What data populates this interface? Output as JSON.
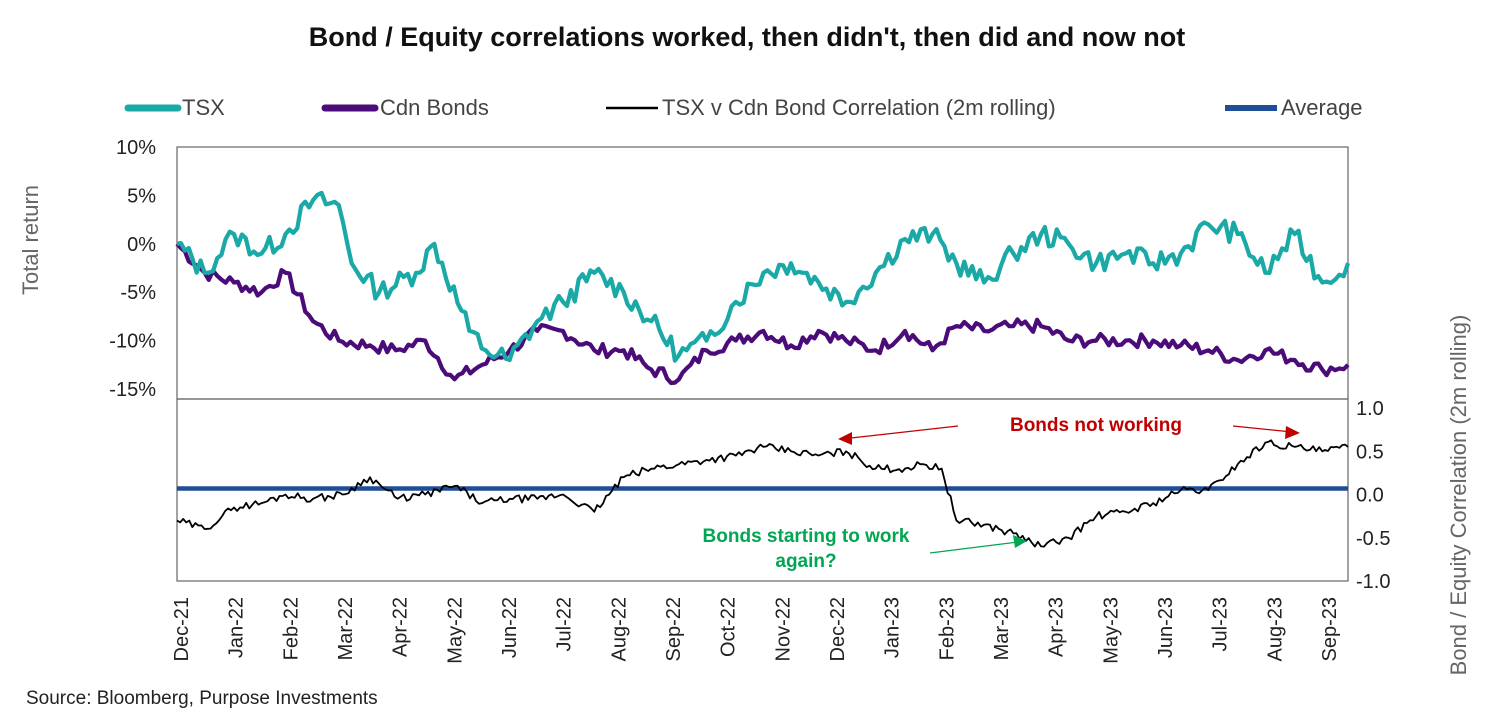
{
  "title": "Bond / Equity correlations worked, then didn't, then did and now not",
  "source": "Source: Bloomberg, Purpose Investments",
  "colors": {
    "tsx": "#1aa9a7",
    "bonds": "#4b0c7a",
    "corr": "#000000",
    "avg": "#1f4e96",
    "red": "#c00000",
    "green": "#00a651"
  },
  "chart_data": {
    "type": "line",
    "title": "Bond / Equity correlations worked, then didn't, then did and now not",
    "x_ticks": [
      "Dec-21",
      "Jan-22",
      "Feb-22",
      "Mar-22",
      "Apr-22",
      "May-22",
      "Jun-22",
      "Jul-22",
      "Aug-22",
      "Sep-22",
      "Oct-22",
      "Nov-22",
      "Dec-22",
      "Jan-23",
      "Feb-23",
      "Mar-23",
      "Apr-23",
      "May-23",
      "Jun-23",
      "Jul-23",
      "Aug-23",
      "Sep-23"
    ],
    "legend": [
      "TSX",
      "Cdn Bonds",
      "TSX v Cdn Bond Correlation (2m rolling)",
      "Average"
    ],
    "legend_placement": "top",
    "top_panel": {
      "ylabel": "Total return",
      "ylim": [
        -15,
        10
      ],
      "y_ticks": [
        "10%",
        "5%",
        "0%",
        "-5%",
        "-10%",
        "-15%"
      ],
      "series": [
        {
          "name": "TSX",
          "x": [
            "2021-12-31",
            "2022-01-15",
            "2022-01-31",
            "2022-02-15",
            "2022-02-28",
            "2022-03-15",
            "2022-03-29",
            "2022-04-05",
            "2022-04-20",
            "2022-05-10",
            "2022-05-20",
            "2022-06-08",
            "2022-06-17",
            "2022-06-30",
            "2022-07-15",
            "2022-07-29",
            "2022-08-15",
            "2022-08-31",
            "2022-09-15",
            "2022-09-30",
            "2022-10-15",
            "2022-10-31",
            "2022-11-15",
            "2022-11-30",
            "2022-12-15",
            "2022-12-30",
            "2023-01-15",
            "2023-01-31",
            "2023-02-15",
            "2023-02-28",
            "2023-03-15",
            "2023-03-31",
            "2023-04-15",
            "2023-04-30",
            "2023-05-15",
            "2023-05-31",
            "2023-06-15",
            "2023-06-30",
            "2023-07-15",
            "2023-07-31",
            "2023-08-15",
            "2023-08-31",
            "2023-09-15",
            "2023-09-29"
          ],
          "values": [
            0,
            -3,
            1,
            -1,
            1,
            4.5,
            4,
            -2,
            -5,
            -3,
            0,
            -9,
            -11,
            -12,
            -8,
            -6,
            -3,
            -5,
            -8,
            -11.5,
            -10,
            -6,
            -3,
            -2,
            -4,
            -6,
            -3,
            0.5,
            1,
            -2,
            -4,
            -1,
            1,
            0,
            -2,
            -1,
            -2,
            -1,
            2,
            1,
            -3,
            1,
            -4,
            -2
          ]
        },
        {
          "name": "Cdn Bonds",
          "x": [
            "2021-12-31",
            "2022-01-15",
            "2022-01-31",
            "2022-02-15",
            "2022-02-28",
            "2022-03-15",
            "2022-03-29",
            "2022-04-15",
            "2022-04-29",
            "2022-05-15",
            "2022-05-31",
            "2022-06-15",
            "2022-06-30",
            "2022-07-15",
            "2022-07-29",
            "2022-08-15",
            "2022-08-31",
            "2022-09-15",
            "2022-09-30",
            "2022-10-15",
            "2022-10-31",
            "2022-11-15",
            "2022-11-30",
            "2022-12-15",
            "2022-12-30",
            "2023-01-15",
            "2023-01-31",
            "2023-02-15",
            "2023-02-28",
            "2023-03-15",
            "2023-03-31",
            "2023-04-15",
            "2023-04-30",
            "2023-05-15",
            "2023-05-31",
            "2023-06-15",
            "2023-06-30",
            "2023-07-15",
            "2023-07-31",
            "2023-08-15",
            "2023-08-31",
            "2023-09-15",
            "2023-09-29"
          ],
          "values": [
            0,
            -3,
            -4,
            -5,
            -3,
            -8,
            -10,
            -10.5,
            -11,
            -10,
            -14,
            -12.5,
            -11,
            -9,
            -9,
            -11,
            -11,
            -13,
            -14,
            -11,
            -10,
            -9,
            -10.5,
            -9,
            -10,
            -11,
            -9,
            -11,
            -8.5,
            -9,
            -8.5,
            -8.5,
            -10,
            -10,
            -10,
            -10,
            -10.5,
            -11,
            -12,
            -11,
            -12,
            -13,
            -12.5
          ]
        }
      ]
    },
    "bottom_panel": {
      "ylabel": "Bond / Equity Correlation (2m rolling)",
      "ylim": [
        -1.0,
        1.0
      ],
      "y_ticks": [
        "1.0",
        "0.5",
        "0.0",
        "-0.5",
        "-1.0"
      ],
      "series": [
        {
          "name": "TSX v Cdn Bond Correlation (2m rolling)",
          "x": [
            "2021-12-31",
            "2022-01-15",
            "2022-01-31",
            "2022-02-15",
            "2022-02-28",
            "2022-03-15",
            "2022-03-31",
            "2022-04-15",
            "2022-04-30",
            "2022-05-15",
            "2022-05-31",
            "2022-06-15",
            "2022-06-30",
            "2022-07-15",
            "2022-07-29",
            "2022-08-15",
            "2022-08-31",
            "2022-09-15",
            "2022-09-30",
            "2022-10-15",
            "2022-10-31",
            "2022-11-15",
            "2022-11-30",
            "2022-12-15",
            "2022-12-30",
            "2023-01-15",
            "2023-01-31",
            "2023-02-10",
            "2023-02-20",
            "2023-02-28",
            "2023-03-15",
            "2023-03-31",
            "2023-04-15",
            "2023-04-30",
            "2023-05-15",
            "2023-05-31",
            "2023-06-15",
            "2023-06-30",
            "2023-07-15",
            "2023-07-31",
            "2023-08-15",
            "2023-08-31",
            "2023-09-15",
            "2023-09-29"
          ],
          "values": [
            -0.3,
            -0.4,
            -0.15,
            -0.1,
            0,
            -0.05,
            0,
            0.2,
            -0.05,
            0,
            0.1,
            -0.1,
            -0.05,
            -0.05,
            0,
            -0.2,
            0.2,
            0.3,
            0.35,
            0.4,
            0.45,
            0.55,
            0.5,
            0.45,
            0.5,
            0.3,
            0.3,
            0.35,
            0.3,
            -0.3,
            -0.35,
            -0.45,
            -0.6,
            -0.5,
            -0.25,
            -0.2,
            -0.1,
            0.05,
            0.05,
            0.35,
            0.6,
            0.55,
            0.5,
            0.55
          ]
        },
        {
          "name": "Average",
          "x": [
            "2021-12-31",
            "2023-09-29"
          ],
          "values": [
            0.07,
            0.07
          ]
        }
      ]
    },
    "annotations": [
      {
        "text": "Bonds not working",
        "color": "red"
      },
      {
        "text": "Bonds starting to work",
        "text2": "again?",
        "color": "green"
      }
    ]
  }
}
